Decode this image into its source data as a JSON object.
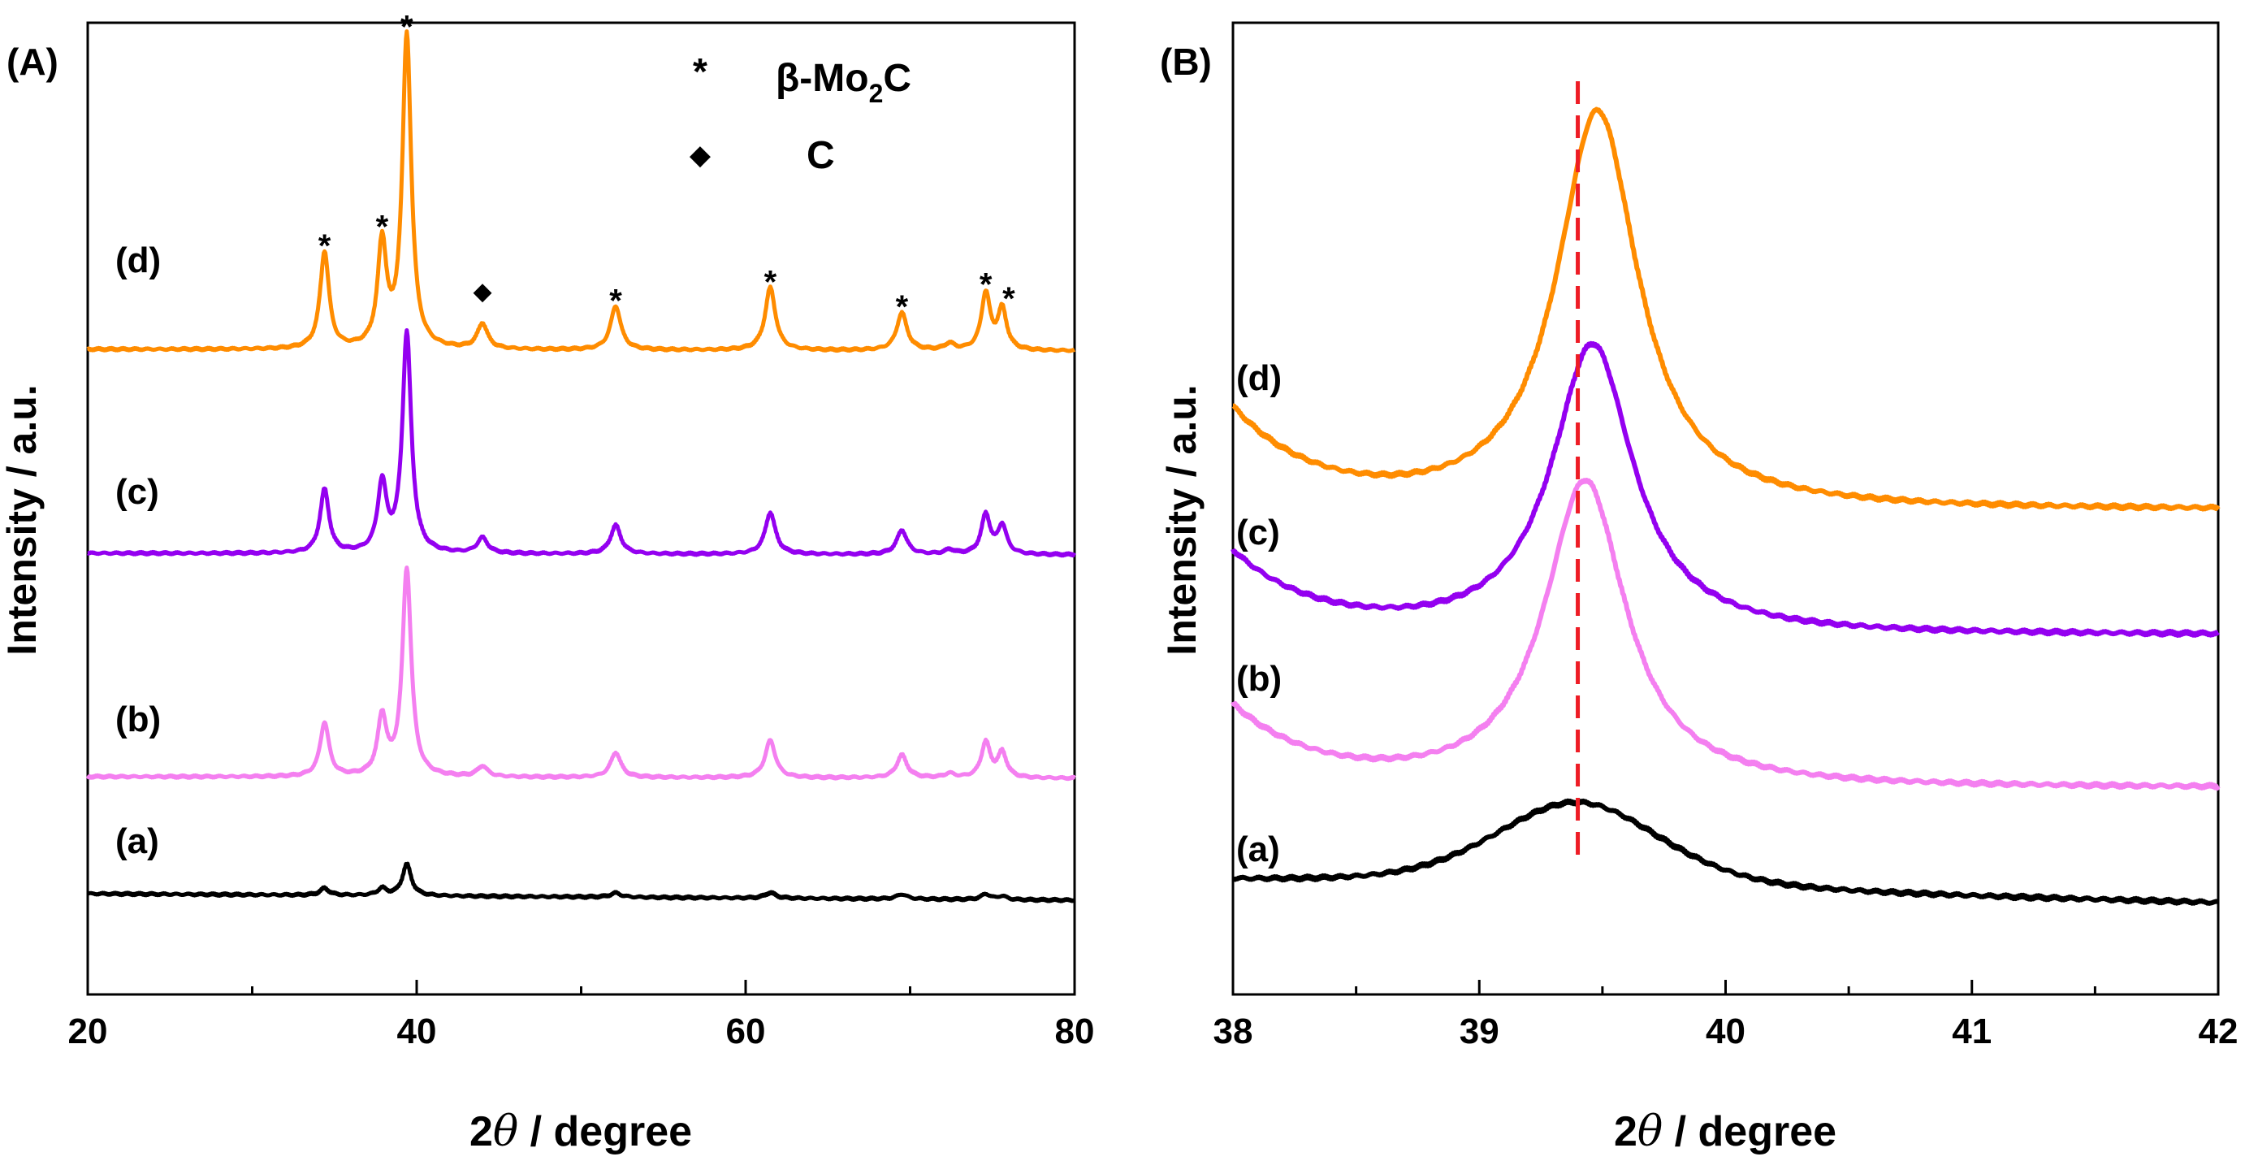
{
  "chart_data": [
    {
      "type": "line",
      "panel_label": "(A)",
      "xlabel_prefix": "2",
      "xlabel_theta": "θ",
      "xlabel_suffix": " / degree",
      "ylabel": "Intensity / a.u.",
      "xlim": [
        20,
        80
      ],
      "xticks": [
        "20",
        "40",
        "60",
        "80"
      ],
      "legend": {
        "asterisk": {
          "symbol": "*",
          "label_prefix": "β-Mo",
          "label_sub": "2",
          "label_suffix": "C"
        },
        "diamond": {
          "symbol": "◆",
          "label": "C"
        }
      },
      "peaks": [
        {
          "pos": 34.4,
          "rel": [
            0.1,
            0.26,
            0.29,
            0.31
          ],
          "width": 0.65
        },
        {
          "pos": 37.9,
          "rel": [
            0.1,
            0.28,
            0.31,
            0.33
          ],
          "width": 0.65
        },
        {
          "pos": 39.4,
          "rel": [
            0.45,
            1.0,
            1.0,
            1.0
          ],
          "width": 0.65
        },
        {
          "pos": 44.0,
          "rel": [
            0.0,
            0.05,
            0.07,
            0.08
          ],
          "width": 0.75
        },
        {
          "pos": 52.1,
          "rel": [
            0.06,
            0.12,
            0.13,
            0.14
          ],
          "width": 0.75
        },
        {
          "pos": 61.5,
          "rel": [
            0.08,
            0.18,
            0.19,
            0.2
          ],
          "width": 0.75
        },
        {
          "pos": 69.5,
          "rel": [
            0.07,
            0.11,
            0.11,
            0.12
          ],
          "width": 0.75
        },
        {
          "pos": 72.4,
          "rel": [
            0.0,
            0.02,
            0.02,
            0.02
          ],
          "width": 0.7
        },
        {
          "pos": 74.6,
          "rel": [
            0.08,
            0.17,
            0.18,
            0.18
          ],
          "width": 0.65
        },
        {
          "pos": 75.6,
          "rel": [
            0.05,
            0.12,
            0.13,
            0.13
          ],
          "width": 0.65
        }
      ],
      "markers": [
        {
          "x": 34.4,
          "symbol": "*"
        },
        {
          "x": 37.9,
          "symbol": "*"
        },
        {
          "x": 39.4,
          "symbol": "*"
        },
        {
          "x": 44.0,
          "symbol": "◆"
        },
        {
          "x": 52.1,
          "symbol": "*"
        },
        {
          "x": 61.5,
          "symbol": "*"
        },
        {
          "x": 69.5,
          "symbol": "*"
        },
        {
          "x": 74.6,
          "symbol": "*"
        },
        {
          "x": 75.6,
          "symbol": "*"
        }
      ],
      "series": [
        {
          "name": "(a)",
          "color": "#000000"
        },
        {
          "name": "(b)",
          "color": "#f47ff0"
        },
        {
          "name": "(c)",
          "color": "#9400f0"
        },
        {
          "name": "(d)",
          "color": "#ff8c00"
        }
      ]
    },
    {
      "type": "line",
      "panel_label": "(B)",
      "xlabel_prefix": "2",
      "xlabel_theta": "θ",
      "xlabel_suffix": " / degree",
      "ylabel": "Intensity / a.u.",
      "xlim": [
        38,
        42
      ],
      "xticks": [
        "38",
        "39",
        "40",
        "41",
        "42"
      ],
      "reference_line_x": 39.4,
      "reference_line_color": "#ee1c25",
      "series": [
        {
          "name": "(a)",
          "color": "#000000",
          "center": 39.4,
          "sigma": 0.33
        },
        {
          "name": "(b)",
          "color": "#f47ff0",
          "center": 39.43,
          "gamma": 0.2
        },
        {
          "name": "(c)",
          "color": "#9400f0",
          "center": 39.46,
          "gamma": 0.2
        },
        {
          "name": "(d)",
          "color": "#ff8c00",
          "center": 39.48,
          "gamma": 0.2
        }
      ]
    }
  ]
}
